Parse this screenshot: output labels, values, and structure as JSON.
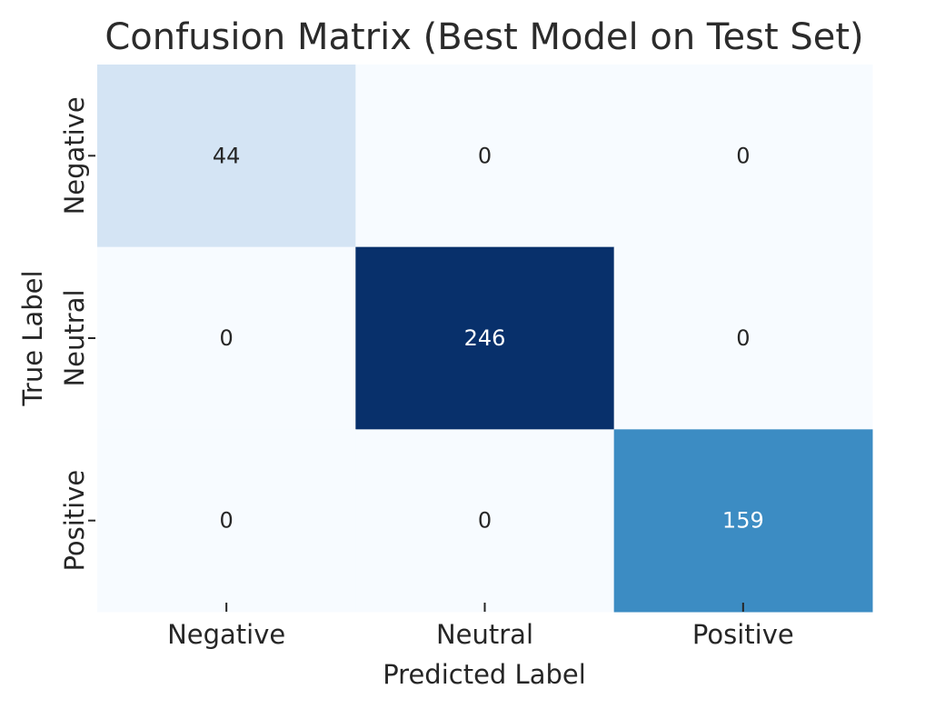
{
  "chart_data": {
    "type": "heatmap",
    "title": "Confusion Matrix (Best Model on Test Set)",
    "xlabel": "Predicted Label",
    "ylabel": "True Label",
    "x_categories": [
      "Negative",
      "Neutral",
      "Positive"
    ],
    "y_categories": [
      "Negative",
      "Neutral",
      "Positive"
    ],
    "values": [
      [
        44,
        0,
        0
      ],
      [
        0,
        246,
        0
      ],
      [
        0,
        0,
        159
      ]
    ],
    "colormap": "Blues",
    "color_range": [
      0,
      246
    ],
    "colorbar": false,
    "grid": false
  }
}
